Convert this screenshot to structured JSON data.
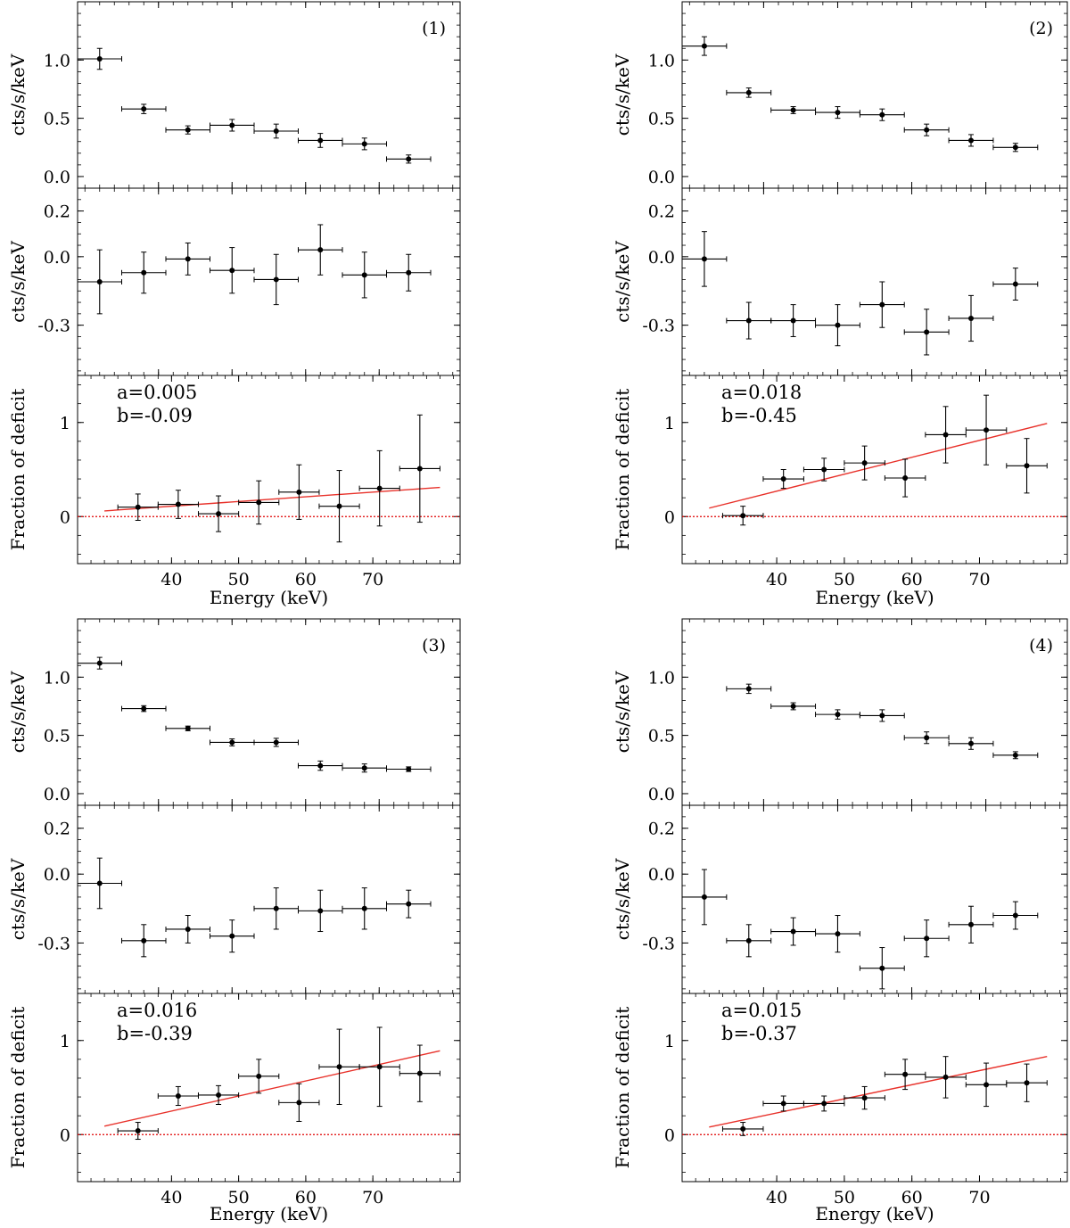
{
  "figure": {
    "colors": {
      "data": "#000000",
      "fit": "#e8312a",
      "zero_line": "#e00000",
      "frame": "#000000"
    }
  },
  "chart_data": [
    {
      "type": "scatter",
      "title": "(1)",
      "xlabel": "Energy (keV)",
      "x_ticks": [
        "40",
        "50",
        "60",
        "70"
      ],
      "panels": {
        "spectrum": {
          "ylabel": "cts/s/keV",
          "ylim": [
            -0.1,
            1.5
          ],
          "y_ticks": [
            "0.0",
            "0.5",
            "1.0"
          ],
          "xlim": [
            29,
            81
          ],
          "points": [
            {
              "x": 32,
              "xerr": 3,
              "y": 1.01,
              "yerr": 0.09
            },
            {
              "x": 38,
              "xerr": 3,
              "y": 0.58,
              "yerr": 0.04
            },
            {
              "x": 44,
              "xerr": 3,
              "y": 0.4,
              "yerr": 0.035
            },
            {
              "x": 50,
              "xerr": 3,
              "y": 0.44,
              "yerr": 0.05
            },
            {
              "x": 56,
              "xerr": 3,
              "y": 0.39,
              "yerr": 0.06
            },
            {
              "x": 62,
              "xerr": 3,
              "y": 0.31,
              "yerr": 0.06
            },
            {
              "x": 68,
              "xerr": 3,
              "y": 0.28,
              "yerr": 0.05
            },
            {
              "x": 74,
              "xerr": 3,
              "y": 0.15,
              "yerr": 0.035
            }
          ]
        },
        "residual": {
          "ylabel": "cts/s/keV",
          "ylim": [
            -0.52,
            0.3
          ],
          "y_ticks": [
            "0.2",
            "0.0",
            "-0.3"
          ],
          "y_tick_values": [
            0.2,
            0.0,
            -0.3
          ],
          "xlim": [
            29,
            81
          ],
          "points": [
            {
              "x": 32,
              "xerr": 3,
              "y": -0.11,
              "yerr": 0.14
            },
            {
              "x": 38,
              "xerr": 3,
              "y": -0.07,
              "yerr": 0.09
            },
            {
              "x": 44,
              "xerr": 3,
              "y": -0.01,
              "yerr": 0.07
            },
            {
              "x": 50,
              "xerr": 3,
              "y": -0.06,
              "yerr": 0.1
            },
            {
              "x": 56,
              "xerr": 3,
              "y": -0.1,
              "yerr": 0.11
            },
            {
              "x": 62,
              "xerr": 3,
              "y": 0.03,
              "yerr": 0.11
            },
            {
              "x": 68,
              "xerr": 3,
              "y": -0.08,
              "yerr": 0.1
            },
            {
              "x": 74,
              "xerr": 3,
              "y": -0.07,
              "yerr": 0.08
            }
          ]
        },
        "fraction": {
          "ylabel": "Fraction of deficit",
          "ylim": [
            -0.5,
            1.5
          ],
          "y_ticks": [
            "0",
            "1"
          ],
          "y_tick_values": [
            0,
            1
          ],
          "xlim": [
            26,
            83
          ],
          "annotation_a": "a=0.005",
          "annotation_b": "b=-0.09",
          "fit": {
            "slope": 0.005,
            "intercept": -0.09,
            "x_range": [
              30,
              80
            ]
          },
          "zero_line": 0,
          "points": [
            {
              "x": 35,
              "xerr": 3,
              "y": 0.1,
              "yerr": 0.14
            },
            {
              "x": 41,
              "xerr": 3,
              "y": 0.13,
              "yerr": 0.15
            },
            {
              "x": 47,
              "xerr": 3,
              "y": 0.03,
              "yerr": 0.19
            },
            {
              "x": 53,
              "xerr": 3,
              "y": 0.15,
              "yerr": 0.23
            },
            {
              "x": 59,
              "xerr": 3,
              "y": 0.26,
              "yerr": 0.29
            },
            {
              "x": 65,
              "xerr": 3,
              "y": 0.11,
              "yerr": 0.38
            },
            {
              "x": 71,
              "xerr": 3,
              "y": 0.3,
              "yerr": 0.4
            },
            {
              "x": 77,
              "xerr": 3,
              "y": 0.51,
              "yerr": 0.57
            }
          ]
        }
      }
    },
    {
      "type": "scatter",
      "title": "(2)",
      "xlabel": "Energy (keV)",
      "x_ticks": [
        "40",
        "50",
        "60",
        "70"
      ],
      "panels": {
        "spectrum": {
          "ylabel": "cts/s/keV",
          "ylim": [
            -0.1,
            1.5
          ],
          "y_ticks": [
            "0.0",
            "0.5",
            "1.0"
          ],
          "xlim": [
            29,
            81
          ],
          "points": [
            {
              "x": 32,
              "xerr": 3,
              "y": 1.12,
              "yerr": 0.08
            },
            {
              "x": 38,
              "xerr": 3,
              "y": 0.72,
              "yerr": 0.04
            },
            {
              "x": 44,
              "xerr": 3,
              "y": 0.57,
              "yerr": 0.03
            },
            {
              "x": 50,
              "xerr": 3,
              "y": 0.55,
              "yerr": 0.05
            },
            {
              "x": 56,
              "xerr": 3,
              "y": 0.53,
              "yerr": 0.05
            },
            {
              "x": 62,
              "xerr": 3,
              "y": 0.4,
              "yerr": 0.05
            },
            {
              "x": 68,
              "xerr": 3,
              "y": 0.31,
              "yerr": 0.05
            },
            {
              "x": 74,
              "xerr": 3,
              "y": 0.25,
              "yerr": 0.035
            }
          ]
        },
        "residual": {
          "ylabel": "cts/s/keV",
          "ylim": [
            -0.52,
            0.3
          ],
          "y_ticks": [
            "0.2",
            "0.0",
            "-0.3"
          ],
          "y_tick_values": [
            0.2,
            0.0,
            -0.3
          ],
          "xlim": [
            29,
            81
          ],
          "points": [
            {
              "x": 32,
              "xerr": 3,
              "y": -0.01,
              "yerr": 0.12
            },
            {
              "x": 38,
              "xerr": 3,
              "y": -0.28,
              "yerr": 0.08
            },
            {
              "x": 44,
              "xerr": 3,
              "y": -0.28,
              "yerr": 0.07
            },
            {
              "x": 50,
              "xerr": 3,
              "y": -0.3,
              "yerr": 0.09
            },
            {
              "x": 56,
              "xerr": 3,
              "y": -0.21,
              "yerr": 0.1
            },
            {
              "x": 62,
              "xerr": 3,
              "y": -0.33,
              "yerr": 0.1
            },
            {
              "x": 68,
              "xerr": 3,
              "y": -0.27,
              "yerr": 0.1
            },
            {
              "x": 74,
              "xerr": 3,
              "y": -0.12,
              "yerr": 0.07
            }
          ]
        },
        "fraction": {
          "ylabel": "Fraction of deficit",
          "ylim": [
            -0.5,
            1.5
          ],
          "y_ticks": [
            "0",
            "1"
          ],
          "y_tick_values": [
            0,
            1
          ],
          "xlim": [
            26,
            83
          ],
          "annotation_a": "a=0.018",
          "annotation_b": "b=-0.45",
          "fit": {
            "slope": 0.018,
            "intercept": -0.45,
            "x_range": [
              30,
              80
            ]
          },
          "zero_line": 0,
          "points": [
            {
              "x": 35,
              "xerr": 3,
              "y": 0.01,
              "yerr": 0.1
            },
            {
              "x": 41,
              "xerr": 3,
              "y": 0.4,
              "yerr": 0.1
            },
            {
              "x": 47,
              "xerr": 3,
              "y": 0.5,
              "yerr": 0.12
            },
            {
              "x": 53,
              "xerr": 3,
              "y": 0.57,
              "yerr": 0.18
            },
            {
              "x": 59,
              "xerr": 3,
              "y": 0.41,
              "yerr": 0.2
            },
            {
              "x": 65,
              "xerr": 3,
              "y": 0.87,
              "yerr": 0.3
            },
            {
              "x": 71,
              "xerr": 3,
              "y": 0.92,
              "yerr": 0.37
            },
            {
              "x": 77,
              "xerr": 3,
              "y": 0.54,
              "yerr": 0.29
            }
          ]
        }
      }
    },
    {
      "type": "scatter",
      "title": "(3)",
      "xlabel": "Energy (keV)",
      "x_ticks": [
        "40",
        "50",
        "60",
        "70"
      ],
      "panels": {
        "spectrum": {
          "ylabel": "cts/s/keV",
          "ylim": [
            -0.1,
            1.5
          ],
          "y_ticks": [
            "0.0",
            "0.5",
            "1.0"
          ],
          "xlim": [
            29,
            81
          ],
          "points": [
            {
              "x": 32,
              "xerr": 3,
              "y": 1.12,
              "yerr": 0.05
            },
            {
              "x": 38,
              "xerr": 3,
              "y": 0.73,
              "yerr": 0.025
            },
            {
              "x": 44,
              "xerr": 3,
              "y": 0.56,
              "yerr": 0.02
            },
            {
              "x": 50,
              "xerr": 3,
              "y": 0.44,
              "yerr": 0.03
            },
            {
              "x": 56,
              "xerr": 3,
              "y": 0.44,
              "yerr": 0.035
            },
            {
              "x": 62,
              "xerr": 3,
              "y": 0.24,
              "yerr": 0.04
            },
            {
              "x": 68,
              "xerr": 3,
              "y": 0.22,
              "yerr": 0.035
            },
            {
              "x": 74,
              "xerr": 3,
              "y": 0.21,
              "yerr": 0.02
            }
          ]
        },
        "residual": {
          "ylabel": "cts/s/keV",
          "ylim": [
            -0.52,
            0.3
          ],
          "y_ticks": [
            "0.2",
            "0.0",
            "-0.3"
          ],
          "y_tick_values": [
            0.2,
            0.0,
            -0.3
          ],
          "xlim": [
            29,
            81
          ],
          "points": [
            {
              "x": 32,
              "xerr": 3,
              "y": -0.04,
              "yerr": 0.11
            },
            {
              "x": 38,
              "xerr": 3,
              "y": -0.29,
              "yerr": 0.07
            },
            {
              "x": 44,
              "xerr": 3,
              "y": -0.24,
              "yerr": 0.06
            },
            {
              "x": 50,
              "xerr": 3,
              "y": -0.27,
              "yerr": 0.07
            },
            {
              "x": 56,
              "xerr": 3,
              "y": -0.15,
              "yerr": 0.09
            },
            {
              "x": 62,
              "xerr": 3,
              "y": -0.16,
              "yerr": 0.09
            },
            {
              "x": 68,
              "xerr": 3,
              "y": -0.15,
              "yerr": 0.09
            },
            {
              "x": 74,
              "xerr": 3,
              "y": -0.13,
              "yerr": 0.06
            }
          ]
        },
        "fraction": {
          "ylabel": "Fraction of deficit",
          "ylim": [
            -0.5,
            1.5
          ],
          "y_ticks": [
            "0",
            "1"
          ],
          "y_tick_values": [
            0,
            1
          ],
          "xlim": [
            26,
            83
          ],
          "annotation_a": "a=0.016",
          "annotation_b": "b=-0.39",
          "fit": {
            "slope": 0.016,
            "intercept": -0.39,
            "x_range": [
              30,
              80
            ]
          },
          "zero_line": 0,
          "points": [
            {
              "x": 35,
              "xerr": 3,
              "y": 0.04,
              "yerr": 0.09
            },
            {
              "x": 41,
              "xerr": 3,
              "y": 0.41,
              "yerr": 0.1
            },
            {
              "x": 47,
              "xerr": 3,
              "y": 0.42,
              "yerr": 0.1
            },
            {
              "x": 53,
              "xerr": 3,
              "y": 0.62,
              "yerr": 0.18
            },
            {
              "x": 59,
              "xerr": 3,
              "y": 0.34,
              "yerr": 0.2
            },
            {
              "x": 65,
              "xerr": 3,
              "y": 0.72,
              "yerr": 0.4
            },
            {
              "x": 71,
              "xerr": 3,
              "y": 0.72,
              "yerr": 0.42
            },
            {
              "x": 77,
              "xerr": 3,
              "y": 0.65,
              "yerr": 0.3
            }
          ]
        }
      }
    },
    {
      "type": "scatter",
      "title": "(4)",
      "xlabel": "Energy (keV)",
      "x_ticks": [
        "40",
        "50",
        "60",
        "70"
      ],
      "panels": {
        "spectrum": {
          "ylabel": "cts/s/keV",
          "ylim": [
            -0.1,
            1.5
          ],
          "y_ticks": [
            "0.0",
            "0.5",
            "1.0"
          ],
          "xlim": [
            29,
            81
          ],
          "points": [
            {
              "x": 38,
              "xerr": 3,
              "y": 0.9,
              "yerr": 0.04
            },
            {
              "x": 44,
              "xerr": 3,
              "y": 0.75,
              "yerr": 0.03
            },
            {
              "x": 50,
              "xerr": 3,
              "y": 0.68,
              "yerr": 0.04
            },
            {
              "x": 56,
              "xerr": 3,
              "y": 0.67,
              "yerr": 0.05
            },
            {
              "x": 62,
              "xerr": 3,
              "y": 0.48,
              "yerr": 0.05
            },
            {
              "x": 68,
              "xerr": 3,
              "y": 0.43,
              "yerr": 0.05
            },
            {
              "x": 74,
              "xerr": 3,
              "y": 0.33,
              "yerr": 0.03
            }
          ]
        },
        "residual": {
          "ylabel": "cts/s/keV",
          "ylim": [
            -0.52,
            0.3
          ],
          "y_ticks": [
            "0.2",
            "0.0",
            "-0.3"
          ],
          "y_tick_values": [
            0.2,
            0.0,
            -0.3
          ],
          "xlim": [
            29,
            81
          ],
          "points": [
            {
              "x": 32,
              "xerr": 3,
              "y": -0.1,
              "yerr": 0.12
            },
            {
              "x": 38,
              "xerr": 3,
              "y": -0.29,
              "yerr": 0.07
            },
            {
              "x": 44,
              "xerr": 3,
              "y": -0.25,
              "yerr": 0.06
            },
            {
              "x": 50,
              "xerr": 3,
              "y": -0.26,
              "yerr": 0.08
            },
            {
              "x": 56,
              "xerr": 3,
              "y": -0.41,
              "yerr": 0.09
            },
            {
              "x": 62,
              "xerr": 3,
              "y": -0.28,
              "yerr": 0.08
            },
            {
              "x": 68,
              "xerr": 3,
              "y": -0.22,
              "yerr": 0.08
            },
            {
              "x": 74,
              "xerr": 3,
              "y": -0.18,
              "yerr": 0.06
            }
          ]
        },
        "fraction": {
          "ylabel": "Fraction of deficit",
          "ylim": [
            -0.5,
            1.5
          ],
          "y_ticks": [
            "0",
            "1"
          ],
          "y_tick_values": [
            0,
            1
          ],
          "xlim": [
            26,
            83
          ],
          "annotation_a": "a=0.015",
          "annotation_b": "b=-0.37",
          "fit": {
            "slope": 0.015,
            "intercept": -0.37,
            "x_range": [
              30,
              80
            ]
          },
          "zero_line": 0,
          "points": [
            {
              "x": 35,
              "xerr": 3,
              "y": 0.06,
              "yerr": 0.07
            },
            {
              "x": 41,
              "xerr": 3,
              "y": 0.33,
              "yerr": 0.08
            },
            {
              "x": 47,
              "xerr": 3,
              "y": 0.33,
              "yerr": 0.08
            },
            {
              "x": 53,
              "xerr": 3,
              "y": 0.39,
              "yerr": 0.12
            },
            {
              "x": 59,
              "xerr": 3,
              "y": 0.64,
              "yerr": 0.16
            },
            {
              "x": 65,
              "xerr": 3,
              "y": 0.61,
              "yerr": 0.22
            },
            {
              "x": 71,
              "xerr": 3,
              "y": 0.53,
              "yerr": 0.23
            },
            {
              "x": 77,
              "xerr": 3,
              "y": 0.55,
              "yerr": 0.2
            }
          ]
        }
      }
    }
  ]
}
